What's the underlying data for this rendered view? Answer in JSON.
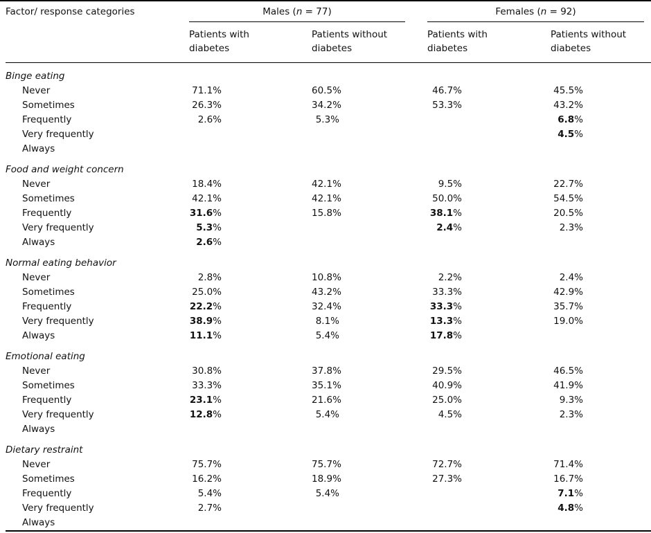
{
  "table": {
    "factor_header": "Factor/ response categories",
    "percent_sign": "%",
    "groups": [
      {
        "pre": "Males (",
        "n": "n",
        "post": " = 77)"
      },
      {
        "pre": "Females (",
        "n": "n",
        "post": " = 92)"
      }
    ],
    "subheaders": [
      {
        "line1": "Patients with",
        "line2": "diabetes"
      },
      {
        "line1": "Patients without",
        "line2": "diabetes"
      },
      {
        "line1": "Patients with",
        "line2": "diabetes"
      },
      {
        "line1": "Patients without",
        "line2": "diabetes"
      }
    ],
    "sections": [
      {
        "name": "Binge eating",
        "rows": [
          {
            "label": "Never",
            "values": [
              "71.1",
              "60.5",
              "46.7",
              "45.5"
            ],
            "bold": [
              false,
              false,
              false,
              false
            ]
          },
          {
            "label": "Sometimes",
            "values": [
              "26.3",
              "34.2",
              "53.3",
              "43.2"
            ],
            "bold": [
              false,
              false,
              false,
              false
            ]
          },
          {
            "label": "Frequently",
            "values": [
              "2.6",
              "5.3",
              "",
              "6.8"
            ],
            "bold": [
              false,
              false,
              false,
              true
            ]
          },
          {
            "label": "Very frequently",
            "values": [
              "",
              "",
              "",
              "4.5"
            ],
            "bold": [
              false,
              false,
              false,
              true
            ]
          },
          {
            "label": "Always",
            "values": [
              "",
              "",
              "",
              ""
            ],
            "bold": [
              false,
              false,
              false,
              false
            ]
          }
        ]
      },
      {
        "name": "Food and weight concern",
        "rows": [
          {
            "label": "Never",
            "values": [
              "18.4",
              "42.1",
              "9.5",
              "22.7"
            ],
            "bold": [
              false,
              false,
              false,
              false
            ]
          },
          {
            "label": "Sometimes",
            "values": [
              "42.1",
              "42.1",
              "50.0",
              "54.5"
            ],
            "bold": [
              false,
              false,
              false,
              false
            ]
          },
          {
            "label": "Frequently",
            "values": [
              "31.6",
              "15.8",
              "38.1",
              "20.5"
            ],
            "bold": [
              true,
              false,
              true,
              false
            ]
          },
          {
            "label": "Very frequently",
            "values": [
              "5.3",
              "",
              "2.4",
              "2.3"
            ],
            "bold": [
              true,
              false,
              true,
              false
            ]
          },
          {
            "label": "Always",
            "values": [
              "2.6",
              "",
              "",
              ""
            ],
            "bold": [
              true,
              false,
              false,
              false
            ]
          }
        ]
      },
      {
        "name": "Normal eating behavior",
        "rows": [
          {
            "label": "Never",
            "values": [
              "2.8",
              "10.8",
              "2.2",
              "2.4"
            ],
            "bold": [
              false,
              false,
              false,
              false
            ]
          },
          {
            "label": "Sometimes",
            "values": [
              "25.0",
              "43.2",
              "33.3",
              "42.9"
            ],
            "bold": [
              false,
              false,
              false,
              false
            ]
          },
          {
            "label": "Frequently",
            "values": [
              "22.2",
              "32.4",
              "33.3",
              "35.7"
            ],
            "bold": [
              true,
              false,
              true,
              false
            ]
          },
          {
            "label": "Very frequently",
            "values": [
              "38.9",
              "8.1",
              "13.3",
              "19.0"
            ],
            "bold": [
              true,
              false,
              true,
              false
            ]
          },
          {
            "label": "Always",
            "values": [
              "11.1",
              "5.4",
              "17.8",
              ""
            ],
            "bold": [
              true,
              false,
              true,
              false
            ]
          }
        ]
      },
      {
        "name": "Emotional eating",
        "rows": [
          {
            "label": "Never",
            "values": [
              "30.8",
              "37.8",
              "29.5",
              "46.5"
            ],
            "bold": [
              false,
              false,
              false,
              false
            ]
          },
          {
            "label": "Sometimes",
            "values": [
              "33.3",
              "35.1",
              "40.9",
              "41.9"
            ],
            "bold": [
              false,
              false,
              false,
              false
            ]
          },
          {
            "label": "Frequently",
            "values": [
              "23.1",
              "21.6",
              "25.0",
              "9.3"
            ],
            "bold": [
              true,
              false,
              false,
              false
            ]
          },
          {
            "label": "Very frequently",
            "values": [
              "12.8",
              "5.4",
              "4.5",
              "2.3"
            ],
            "bold": [
              true,
              false,
              false,
              false
            ]
          },
          {
            "label": "Always",
            "values": [
              "",
              "",
              "",
              ""
            ],
            "bold": [
              false,
              false,
              false,
              false
            ]
          }
        ]
      },
      {
        "name": "Dietary restraint",
        "rows": [
          {
            "label": "Never",
            "values": [
              "75.7",
              "75.7",
              "72.7",
              "71.4"
            ],
            "bold": [
              false,
              false,
              false,
              false
            ]
          },
          {
            "label": "Sometimes",
            "values": [
              "16.2",
              "18.9",
              "27.3",
              "16.7"
            ],
            "bold": [
              false,
              false,
              false,
              false
            ]
          },
          {
            "label": "Frequently",
            "values": [
              "5.4",
              "5.4",
              "",
              "7.1"
            ],
            "bold": [
              false,
              false,
              false,
              true
            ]
          },
          {
            "label": "Very frequently",
            "values": [
              "2.7",
              "",
              "",
              "4.8"
            ],
            "bold": [
              false,
              false,
              false,
              true
            ]
          },
          {
            "label": "Always",
            "values": [
              "",
              "",
              "",
              ""
            ],
            "bold": [
              false,
              false,
              false,
              false
            ]
          }
        ]
      }
    ]
  }
}
